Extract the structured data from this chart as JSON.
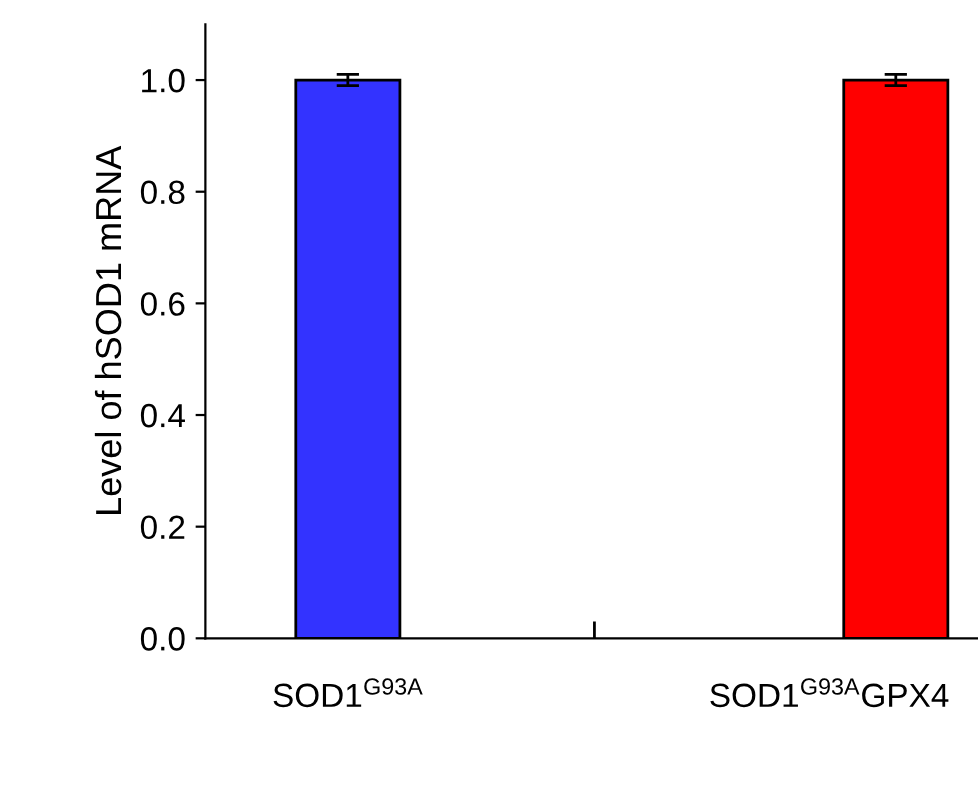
{
  "chart_data": {
    "type": "bar",
    "ylabel": "Level of hSOD1 mRNA",
    "categories": [
      "SOD1$^{G93A}$",
      "SOD1$^{G93A}$GPX4"
    ],
    "values": [
      1.0,
      1.0
    ],
    "colors": [
      "#3333ff",
      "#ff0000"
    ],
    "errors": [
      0.01,
      0.01
    ],
    "ylim": [
      0,
      1.1
    ],
    "yticks": [
      {
        "value": 0,
        "label": "0.0"
      },
      {
        "value": 0.2,
        "label": "0.2"
      },
      {
        "value": 0.4,
        "label": "0.4"
      },
      {
        "value": 0.6,
        "label": "0.6"
      },
      {
        "value": 0.8,
        "label": "0.8"
      },
      {
        "value": 1.0,
        "label": "1.0"
      }
    ],
    "grid": false,
    "legend": false
  }
}
